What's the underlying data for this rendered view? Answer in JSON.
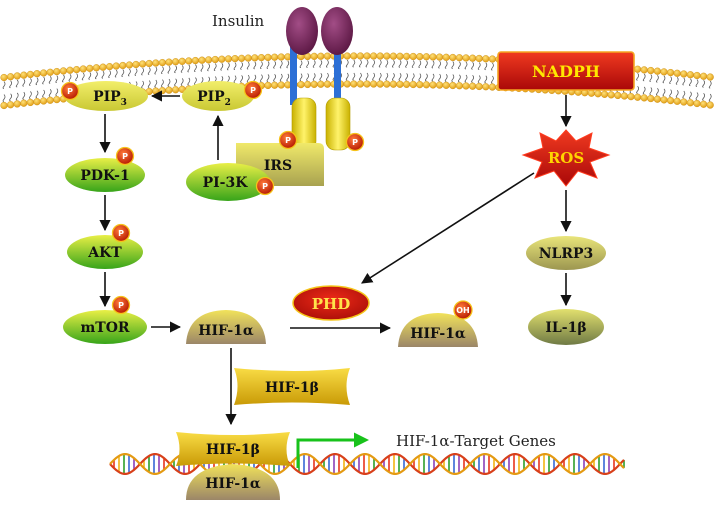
{
  "labels": {
    "insulin": "Insulin",
    "nadph": "NADPH",
    "pip3": "PIP3",
    "pip2": "PIP2",
    "irs": "IRS",
    "pi3k": "PI-3K",
    "pdk1": "PDK-1",
    "akt": "AKT",
    "mtor": "mTOR",
    "ros": "ROS",
    "nlrp3": "NLRP3",
    "il1b": "IL-1β",
    "hif1a": "HIF-1α",
    "phd": "PHD",
    "hif1a_oh": "HIF-1α",
    "hif1b": "HIF-1β",
    "hif1b_dna": "HIF-1β",
    "hif1a_dna": "HIF-1α",
    "target_genes": "HIF-1α-Target Genes"
  },
  "badges": {
    "phospho": "P",
    "hydroxyl": "OH"
  },
  "colors": {
    "membrane_head": "#f2b12a",
    "node_green": "#7fcf1a",
    "node_yellow": "#e9e23a",
    "node_tan": "#b8a770",
    "node_gold": "#e8b918",
    "phospho": "#d22a08",
    "nadph": "#d1140c",
    "ros": "#f31a1a",
    "insulin": "#7a2a5f",
    "green_arrow": "#18c21b"
  }
}
